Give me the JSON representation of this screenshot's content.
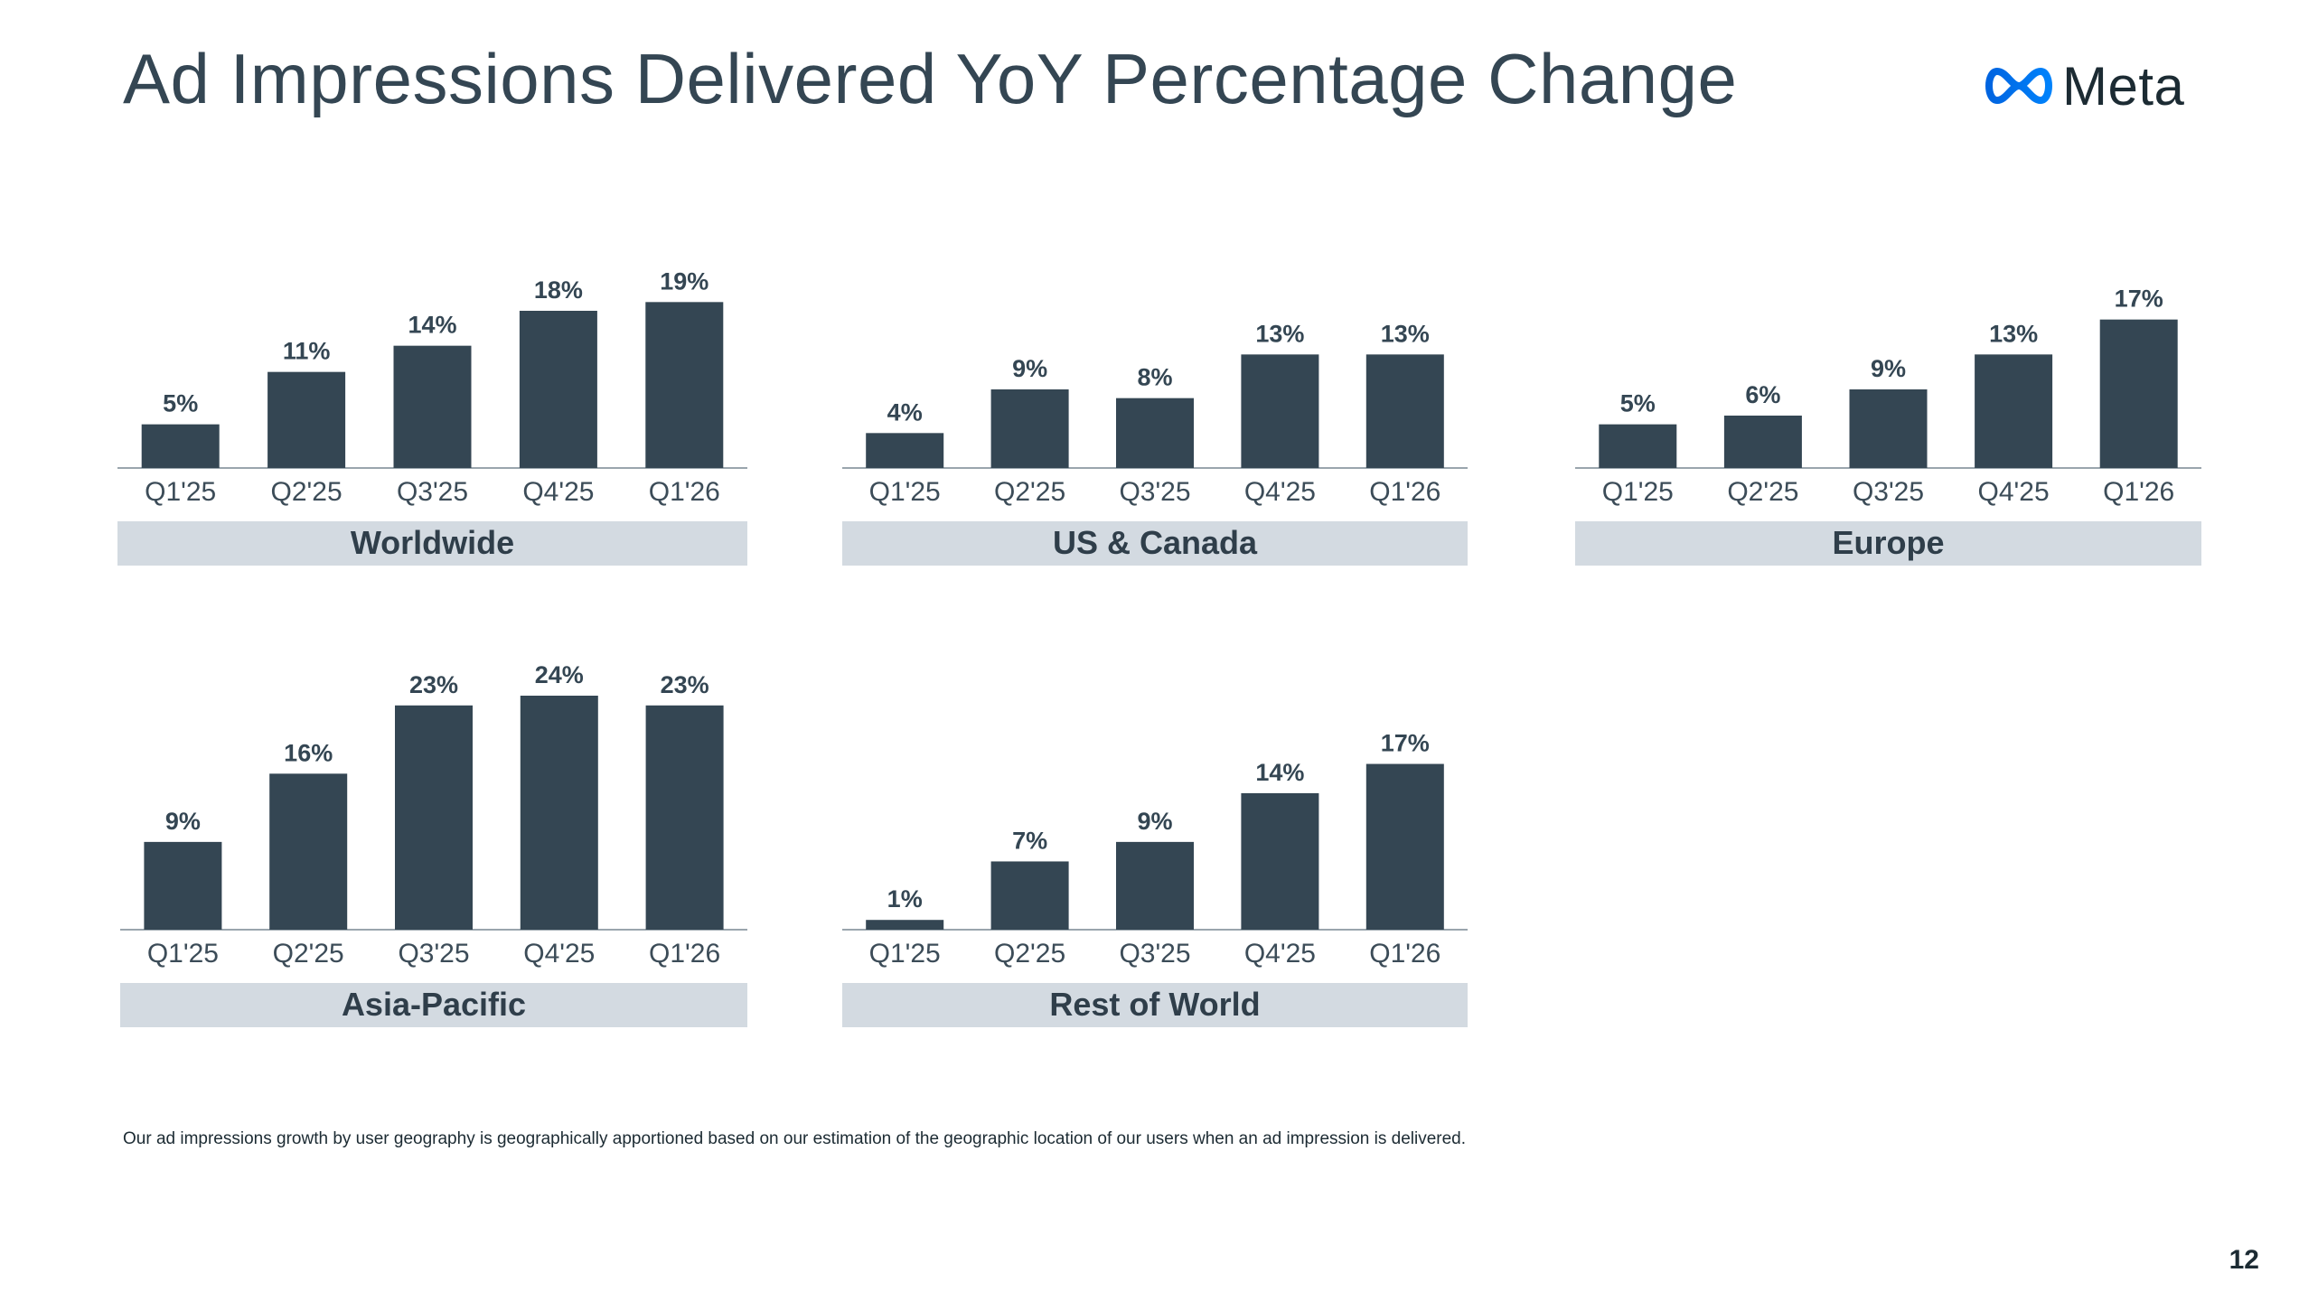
{
  "title": "Ad Impressions Delivered YoY Percentage Change",
  "logo": {
    "icon": "meta-infinity-icon",
    "wordmark": "Meta"
  },
  "footnote": "Our ad impressions growth by user geography is geographically apportioned based on our estimation of the geographic location of our users when an ad impression is delivered.",
  "page_number": "12",
  "colors": {
    "bar": "#344653",
    "label_band": "#d3dae1",
    "axis": "#9aa5ad",
    "logo_gradient_start": "#0064e0",
    "logo_gradient_end": "#0082fb"
  },
  "chart_data": [
    {
      "type": "bar",
      "title": "Worldwide",
      "categories": [
        "Q1'25",
        "Q2'25",
        "Q3'25",
        "Q4'25",
        "Q1'26"
      ],
      "values": [
        5,
        11,
        14,
        18,
        19
      ],
      "value_labels": [
        "5%",
        "11%",
        "14%",
        "18%",
        "19%"
      ],
      "unit": "%",
      "ylim": [
        0,
        24
      ],
      "grid": false
    },
    {
      "type": "bar",
      "title": "US & Canada",
      "categories": [
        "Q1'25",
        "Q2'25",
        "Q3'25",
        "Q4'25",
        "Q1'26"
      ],
      "values": [
        4,
        9,
        8,
        13,
        13
      ],
      "value_labels": [
        "4%",
        "9%",
        "8%",
        "13%",
        "13%"
      ],
      "unit": "%",
      "ylim": [
        0,
        24
      ],
      "grid": false
    },
    {
      "type": "bar",
      "title": "Europe",
      "categories": [
        "Q1'25",
        "Q2'25",
        "Q3'25",
        "Q4'25",
        "Q1'26"
      ],
      "values": [
        5,
        6,
        9,
        13,
        17
      ],
      "value_labels": [
        "5%",
        "6%",
        "9%",
        "13%",
        "17%"
      ],
      "unit": "%",
      "ylim": [
        0,
        24
      ],
      "grid": false
    },
    {
      "type": "bar",
      "title": "Asia-Pacific",
      "categories": [
        "Q1'25",
        "Q2'25",
        "Q3'25",
        "Q4'25",
        "Q1'26"
      ],
      "values": [
        9,
        16,
        23,
        24,
        23
      ],
      "value_labels": [
        "9%",
        "16%",
        "23%",
        "24%",
        "23%"
      ],
      "unit": "%",
      "ylim": [
        0,
        24
      ],
      "grid": false
    },
    {
      "type": "bar",
      "title": "Rest of World",
      "categories": [
        "Q1'25",
        "Q2'25",
        "Q3'25",
        "Q4'25",
        "Q1'26"
      ],
      "values": [
        1,
        7,
        9,
        14,
        17
      ],
      "value_labels": [
        "1%",
        "7%",
        "9%",
        "14%",
        "17%"
      ],
      "unit": "%",
      "ylim": [
        0,
        24
      ],
      "grid": false
    }
  ]
}
